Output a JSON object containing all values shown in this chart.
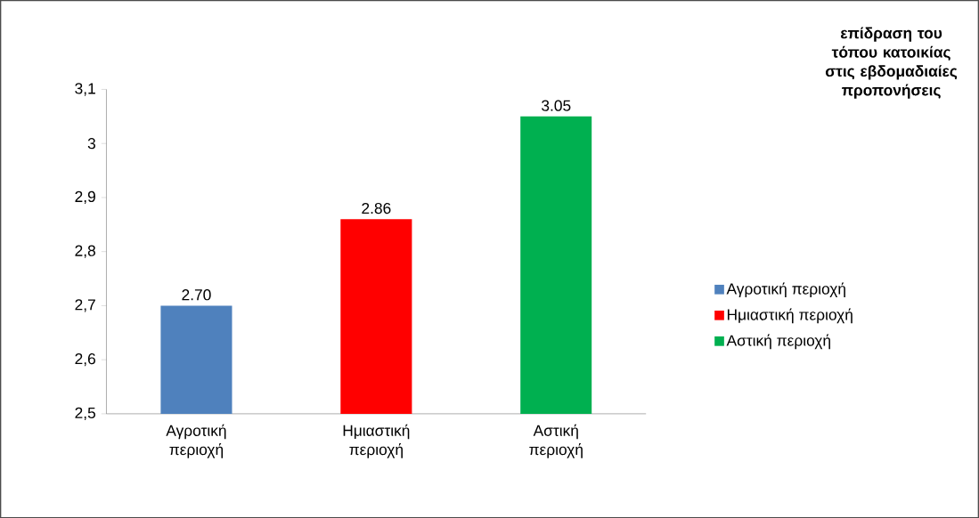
{
  "chart_data": {
    "type": "bar",
    "title": "επίδραση του τόπου κατοικίας στις εβδομαδιαίες προπονήσεις",
    "categories": [
      "Αγροτική περιοχή",
      "Ημιαστική περιοχή",
      "Αστική περιοχή"
    ],
    "series": [
      {
        "name": "Αγροτική περιοχή",
        "color": "#4f81bd",
        "values": [
          2.7,
          null,
          null
        ],
        "value_labels": [
          "2.70",
          null,
          null
        ]
      },
      {
        "name": "Ημιαστική περιοχή",
        "color": "#ff0000",
        "values": [
          null,
          2.86,
          null
        ],
        "value_labels": [
          null,
          "2.86",
          null
        ]
      },
      {
        "name": "Αστική περιοχή",
        "color": "#00b050",
        "values": [
          null,
          null,
          3.05
        ],
        "value_labels": [
          null,
          null,
          "3.05"
        ]
      }
    ],
    "ylim": [
      2.5,
      3.1
    ],
    "yticks": [
      {
        "value": 2.5,
        "label": "2,5"
      },
      {
        "value": 2.6,
        "label": "2,6"
      },
      {
        "value": 2.7,
        "label": "2,7"
      },
      {
        "value": 2.8,
        "label": "2,8"
      },
      {
        "value": 2.9,
        "label": "2,9"
      },
      {
        "value": 3,
        "label": "3"
      },
      {
        "value": 3.1,
        "label": "3,1"
      }
    ],
    "legend": "right",
    "grid": false
  }
}
